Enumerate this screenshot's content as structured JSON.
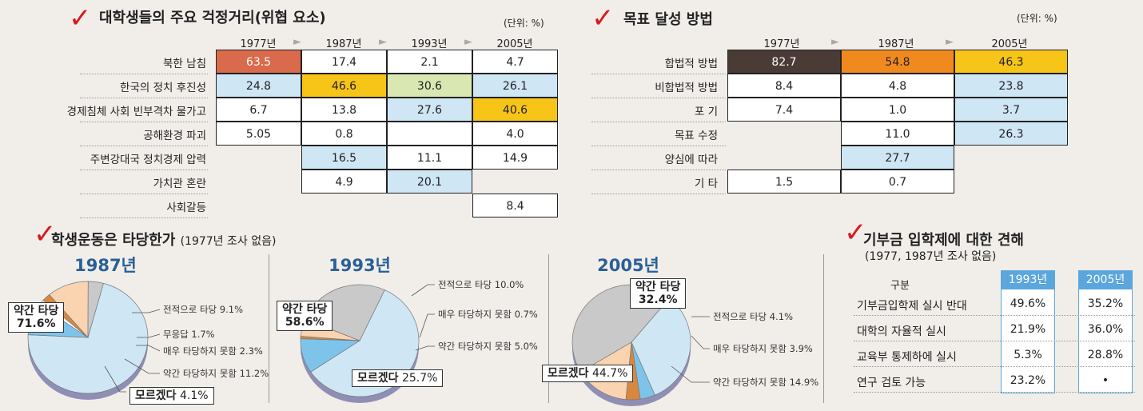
{
  "section_worries": {
    "title": "대학생들의 주요 걱정거리(위협 요소)",
    "unit": "(단위: %)",
    "years": [
      "1977년",
      "1987년",
      "1993년",
      "2005년"
    ],
    "rows": [
      {
        "label": "북한 남침",
        "values": [
          "63.5",
          "17.4",
          "2.1",
          "4.7"
        ]
      },
      {
        "label": "한국의 정치 후진성",
        "values": [
          "24.8",
          "46.6",
          "30.6",
          "26.1"
        ]
      },
      {
        "label": "경제침체 사회 빈부격차 물가고",
        "values": [
          "6.7",
          "13.8",
          "27.6",
          "40.6"
        ]
      },
      {
        "label": "공해환경 파괴",
        "values": [
          "5.05",
          "0.8",
          "",
          "4.0"
        ]
      },
      {
        "label": "주변강대국 정치경제 압력",
        "values": [
          "",
          "16.5",
          "11.1",
          "14.9"
        ]
      },
      {
        "label": "가치관 혼란",
        "values": [
          "",
          "4.9",
          "20.1",
          ""
        ]
      },
      {
        "label": "사회갈등",
        "values": [
          "",
          "",
          "",
          "8.4"
        ]
      }
    ],
    "colors": {
      "red": "#d96a4c",
      "blue": "#cfe6f5",
      "yellow": "#f7c418",
      "green": "#d9e8b2",
      "white": "#ffffff"
    }
  },
  "section_goals": {
    "title": "목표 달성 방법",
    "unit": "(단위: %)",
    "years": [
      "1977년",
      "1987년",
      "2005년"
    ],
    "rows": [
      {
        "label": "합법적 방법",
        "values": [
          "82.7",
          "54.8",
          "46.3"
        ]
      },
      {
        "label": "비합법적 방법",
        "values": [
          "8.4",
          "4.8",
          "23.8"
        ]
      },
      {
        "label": "포 기",
        "values": [
          "7.4",
          "1.0",
          "3.7"
        ]
      },
      {
        "label": "목표 수정",
        "values": [
          "",
          "11.0",
          "26.3"
        ]
      },
      {
        "label": "양심에 따라",
        "values": [
          "",
          "27.7",
          ""
        ]
      },
      {
        "label": "기 타",
        "values": [
          "1.5",
          "0.7",
          ""
        ]
      }
    ],
    "colors": {
      "dark": "#4a3b36",
      "orange": "#f08a1f",
      "yellow": "#f7c418",
      "blue": "#cfe6f5"
    }
  },
  "section_movement": {
    "title": "학생운동은 타당한가",
    "subtitle": "(1977년 조사 없음)"
  },
  "chart_data": [
    {
      "type": "pie",
      "title": "1987년",
      "slices": [
        {
          "label": "약간 타당",
          "value": 71.6,
          "color": "#cfe6f5"
        },
        {
          "label": "전적으로 타당",
          "value": 9.1,
          "color": "#7ec4ea"
        },
        {
          "label": "무응답",
          "value": 1.7,
          "color": "#ffffff"
        },
        {
          "label": "매우 타당하지 못함",
          "value": 2.3,
          "color": "#d8883e"
        },
        {
          "label": "약간 타당하지 못함",
          "value": 11.2,
          "color": "#fad3b0"
        },
        {
          "label": "모르겠다",
          "value": 4.1,
          "color": "#c9c9c9"
        }
      ],
      "labels_text": {
        "main": "약간 타당",
        "main_value": "71.6%",
        "a": "전적으로 타당 9.1%",
        "b": "무응답 1.7%",
        "c": "매우 타당하지 못함 2.3%",
        "d": "약간 타당하지 못함 11.2%",
        "e": "모르겠다",
        "e_value": "4.1%"
      }
    },
    {
      "type": "pie",
      "title": "1993년",
      "slices": [
        {
          "label": "약간 타당",
          "value": 58.6,
          "color": "#cfe6f5"
        },
        {
          "label": "전적으로 타당",
          "value": 10.0,
          "color": "#7ec4ea"
        },
        {
          "label": "매우 타당하지 못함",
          "value": 0.7,
          "color": "#d8883e"
        },
        {
          "label": "약간 타당하지 못함",
          "value": 5.0,
          "color": "#fad3b0"
        },
        {
          "label": "모르겠다",
          "value": 25.7,
          "color": "#c9c9c9"
        }
      ],
      "labels_text": {
        "main": "약간 타당",
        "main_value": "58.6%",
        "a": "전적으로 타당 10.0%",
        "b": "매우 타당하지 못함 0.7%",
        "c": "약간 타당하지 못함 5.0%",
        "e": "모르겠다",
        "e_value": "25.7%"
      }
    },
    {
      "type": "pie",
      "title": "2005년",
      "slices": [
        {
          "label": "약간 타당",
          "value": 32.4,
          "color": "#cfe6f5"
        },
        {
          "label": "전적으로 타당",
          "value": 4.1,
          "color": "#7ec4ea"
        },
        {
          "label": "매우 타당하지 못함",
          "value": 3.9,
          "color": "#d8883e"
        },
        {
          "label": "약간 타당하지 못함",
          "value": 14.9,
          "color": "#fad3b0"
        },
        {
          "label": "모르겠다",
          "value": 44.7,
          "color": "#c9c9c9"
        }
      ],
      "labels_text": {
        "main": "약간 타당",
        "main_value": "32.4%",
        "a": "전적으로 타당 4.1%",
        "b": "매우 타당하지 못함 3.9%",
        "c": "약간 타당하지 못함 14.9%",
        "e": "모르겠다",
        "e_value": "44.7%"
      }
    }
  ],
  "section_donation": {
    "title": "기부금 입학제에 대한 견해",
    "subtitle": "(1977, 1987년 조사 없음)",
    "header_label": "구분",
    "years": [
      "1993년",
      "2005년"
    ],
    "rows": [
      {
        "label": "기부금입학제 실시 반대",
        "values": [
          "49.6%",
          "35.2%"
        ]
      },
      {
        "label": "대학의 자율적 실시",
        "values": [
          "21.9%",
          "36.0%"
        ]
      },
      {
        "label": "교육부 통제하에 실시",
        "values": [
          "5.3%",
          "28.8%"
        ]
      },
      {
        "label": "연구 검토 가능",
        "values": [
          "23.2%",
          "•"
        ]
      }
    ]
  },
  "icons": {
    "check": "✓",
    "arrow": "►"
  }
}
